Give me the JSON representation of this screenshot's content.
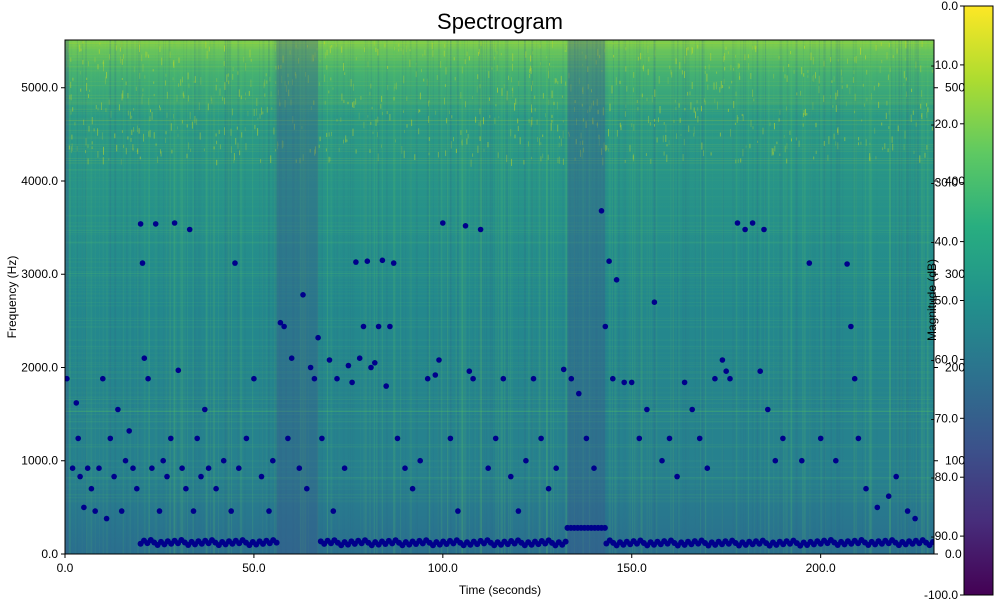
{
  "chart_data": {
    "type": "heatmap",
    "title": "Spectrogram",
    "xlabel": "Time (seconds)",
    "ylabel": "Frequency (Hz)",
    "colorbar_label": "Magnitude (dB)",
    "xlim": [
      0,
      230
    ],
    "ylim": [
      0,
      5512
    ],
    "zlim": [
      -100,
      0
    ],
    "colormap": "viridis",
    "x_ticks": [
      0,
      50,
      100,
      150,
      200
    ],
    "x_tick_labels": [
      "0.0",
      "50.0",
      "100.0",
      "150.0",
      "200.0"
    ],
    "y_ticks": [
      0,
      1000,
      2000,
      3000,
      4000,
      5000
    ],
    "y_tick_labels": [
      "0.0",
      "1000.0",
      "2000.0",
      "3000.0",
      "4000.0",
      "5000.0"
    ],
    "colorbar_ticks": [
      0,
      -10,
      -20,
      -30,
      -40,
      -50,
      -60,
      -70,
      -80,
      -90,
      -100
    ],
    "colorbar_tick_labels": [
      "0.0",
      "-10.0",
      "-20.0",
      "-30.0",
      "-40.0",
      "-50.0",
      "-60.0",
      "-70.0",
      "-80.0",
      "-90.0",
      "-100.0"
    ],
    "secondary_axis_ticks": [
      5000,
      4000,
      3000,
      2000,
      1000,
      0
    ],
    "secondary_axis_tick_labels": [
      "5000",
      "4000",
      "3000",
      "2000",
      "1000",
      "0.0"
    ],
    "quiet_segments": [
      [
        0,
        1
      ],
      [
        56,
        67
      ],
      [
        133,
        143
      ]
    ],
    "peak_markers": {
      "name": "",
      "color": "#00008b",
      "points": [
        [
          0.5,
          1880
        ],
        [
          2,
          920
        ],
        [
          3,
          1620
        ],
        [
          3.5,
          1240
        ],
        [
          4,
          830
        ],
        [
          5,
          500
        ],
        [
          6,
          920
        ],
        [
          7,
          700
        ],
        [
          8,
          460
        ],
        [
          9,
          920
        ],
        [
          10,
          1880
        ],
        [
          11,
          380
        ],
        [
          12,
          1240
        ],
        [
          13,
          830
        ],
        [
          14,
          1550
        ],
        [
          15,
          460
        ],
        [
          16,
          1000
        ],
        [
          17,
          1320
        ],
        [
          18,
          920
        ],
        [
          19,
          700
        ],
        [
          20,
          3540
        ],
        [
          20.5,
          3120
        ],
        [
          21,
          2100
        ],
        [
          22,
          1880
        ],
        [
          23,
          920
        ],
        [
          24,
          3540
        ],
        [
          25,
          460
        ],
        [
          26,
          1000
        ],
        [
          27,
          830
        ],
        [
          28,
          1240
        ],
        [
          29,
          3550
        ],
        [
          30,
          1970
        ],
        [
          31,
          920
        ],
        [
          32,
          700
        ],
        [
          33,
          3480
        ],
        [
          34,
          460
        ],
        [
          35,
          1240
        ],
        [
          36,
          830
        ],
        [
          37,
          1550
        ],
        [
          38,
          920
        ],
        [
          40,
          700
        ],
        [
          42,
          1000
        ],
        [
          44,
          460
        ],
        [
          45,
          3120
        ],
        [
          46,
          920
        ],
        [
          48,
          1240
        ],
        [
          50,
          1880
        ],
        [
          52,
          830
        ],
        [
          54,
          460
        ],
        [
          55,
          1000
        ],
        [
          57,
          2480
        ],
        [
          58,
          2440
        ],
        [
          59,
          1240
        ],
        [
          60,
          2100
        ],
        [
          62,
          920
        ],
        [
          63,
          2780
        ],
        [
          64,
          700
        ],
        [
          65,
          2000
        ],
        [
          66,
          1880
        ],
        [
          67,
          2320
        ],
        [
          68,
          1240
        ],
        [
          70,
          2080
        ],
        [
          71,
          460
        ],
        [
          72,
          1880
        ],
        [
          74,
          920
        ],
        [
          75,
          2020
        ],
        [
          76,
          1840
        ],
        [
          77,
          3130
        ],
        [
          78,
          2100
        ],
        [
          79,
          2440
        ],
        [
          80,
          3140
        ],
        [
          81,
          2000
        ],
        [
          82,
          2050
        ],
        [
          83,
          2440
        ],
        [
          84,
          3150
        ],
        [
          85,
          1800
        ],
        [
          86,
          2440
        ],
        [
          87,
          3120
        ],
        [
          88,
          1240
        ],
        [
          90,
          920
        ],
        [
          92,
          700
        ],
        [
          94,
          1000
        ],
        [
          96,
          1880
        ],
        [
          98,
          1920
        ],
        [
          99,
          2080
        ],
        [
          100,
          3550
        ],
        [
          102,
          1240
        ],
        [
          104,
          460
        ],
        [
          106,
          3520
        ],
        [
          107,
          1960
        ],
        [
          108,
          1880
        ],
        [
          110,
          3480
        ],
        [
          112,
          920
        ],
        [
          114,
          1240
        ],
        [
          116,
          1880
        ],
        [
          118,
          830
        ],
        [
          120,
          460
        ],
        [
          122,
          1000
        ],
        [
          124,
          1880
        ],
        [
          126,
          1240
        ],
        [
          128,
          700
        ],
        [
          130,
          920
        ],
        [
          132,
          1980
        ],
        [
          134,
          1880
        ],
        [
          136,
          1720
        ],
        [
          138,
          1240
        ],
        [
          140,
          920
        ],
        [
          142,
          3680
        ],
        [
          143,
          2440
        ],
        [
          144,
          3140
        ],
        [
          145,
          1880
        ],
        [
          146,
          2940
        ],
        [
          148,
          1840
        ],
        [
          150,
          1840
        ],
        [
          152,
          1240
        ],
        [
          154,
          1550
        ],
        [
          156,
          2700
        ],
        [
          158,
          1000
        ],
        [
          160,
          1240
        ],
        [
          162,
          830
        ],
        [
          164,
          1840
        ],
        [
          166,
          1550
        ],
        [
          168,
          1240
        ],
        [
          170,
          920
        ],
        [
          172,
          1880
        ],
        [
          174,
          2080
        ],
        [
          175,
          1960
        ],
        [
          176,
          1880
        ],
        [
          178,
          3550
        ],
        [
          180,
          3480
        ],
        [
          182,
          3550
        ],
        [
          184,
          1960
        ],
        [
          185,
          3480
        ],
        [
          186,
          1550
        ],
        [
          188,
          1000
        ],
        [
          190,
          1240
        ],
        [
          195,
          1000
        ],
        [
          197,
          3120
        ],
        [
          200,
          1240
        ],
        [
          204,
          1000
        ],
        [
          207,
          3110
        ],
        [
          208,
          2440
        ],
        [
          209,
          1880
        ],
        [
          210,
          1240
        ],
        [
          212,
          700
        ],
        [
          215,
          500
        ],
        [
          218,
          620
        ],
        [
          220,
          830
        ],
        [
          223,
          460
        ],
        [
          225,
          380
        ]
      ]
    }
  }
}
